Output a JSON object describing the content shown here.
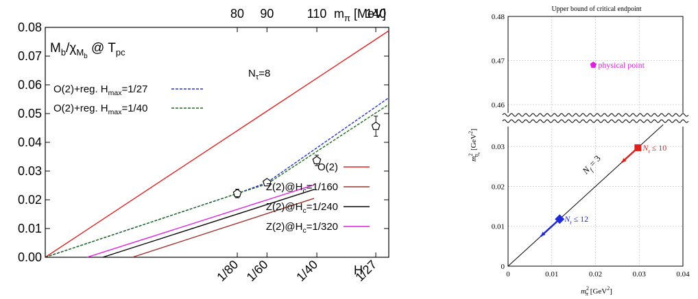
{
  "chart_data": [
    {
      "type": "line",
      "title": "",
      "panel_label": {
        "main": "M",
        "sub_b": "b",
        "slash": "/χ",
        "sub_m": "M",
        "sub_mb": "b",
        "at": " @ T",
        "sub_pc": "pc"
      },
      "annotation": {
        "main": "N",
        "sub": "τ",
        "rest": "=8"
      },
      "xlabel_bottom": "H",
      "xlabel_top": {
        "main": "m",
        "sub": "π",
        "rest": " [MeV]"
      },
      "x_scale": "sqrt(H)",
      "xlim": [
        0,
        0.2
      ],
      "ylim": [
        0,
        0.08
      ],
      "y_ticks": [
        "0.00",
        "0.01",
        "0.02",
        "0.03",
        "0.04",
        "0.05",
        "0.06",
        "0.07",
        "0.08"
      ],
      "x_ticks_bottom": [
        {
          "label": "1/80",
          "H": 0.0125
        },
        {
          "label": "1/60",
          "H": 0.016667
        },
        {
          "label": "1/40",
          "H": 0.025
        },
        {
          "label": "1/27",
          "H": 0.037037
        }
      ],
      "x_ticks_top": [
        {
          "label": "80",
          "H": 0.0125
        },
        {
          "label": "90",
          "H": 0.016667
        },
        {
          "label": "110",
          "H": 0.025
        },
        {
          "label": "140",
          "H": 0.037037
        }
      ],
      "legend_upper": [
        {
          "label": "O(2)+reg. H",
          "sub": "max",
          "rest": "=1/27",
          "color": "#2030d0",
          "dash": true
        },
        {
          "label": "O(2)+reg. H",
          "sub": "max",
          "rest": "=1/40",
          "color": "#1a6a1a",
          "dash": true
        }
      ],
      "legend_lower": [
        {
          "label": "O(2)",
          "sub": "",
          "rest": "",
          "color": "#e02020"
        },
        {
          "label": "Z(2)@H",
          "sub": "c",
          "rest": "=1/160",
          "color": "#a0302a"
        },
        {
          "label": "Z(2)@H",
          "sub": "c",
          "rest": "=1/240",
          "color": "#000000"
        },
        {
          "label": "Z(2)@H",
          "sub": "c",
          "rest": "=1/320",
          "color": "#e020e0"
        }
      ],
      "series": [
        {
          "name": "O(2)",
          "color": "#e02020",
          "dash": false,
          "x": [
            0,
            0.2
          ],
          "y": [
            0,
            0.0788
          ]
        },
        {
          "name": "O(2)+reg. Hmax=1/27",
          "color": "#2030d0",
          "dash": true,
          "x": [
            0,
            0.1118,
            0.1291,
            0.2
          ],
          "y": [
            0,
            0.0222,
            0.026,
            0.0555
          ]
        },
        {
          "name": "O(2)+reg. Hmax=1/40",
          "color": "#1a6a1a",
          "dash": true,
          "x": [
            0,
            0.1118,
            0.1291,
            0.2
          ],
          "y": [
            0,
            0.0222,
            0.0255,
            0.0532
          ]
        },
        {
          "name": "Z(2)@Hc=1/160",
          "color": "#a0302a",
          "dash": false,
          "x": [
            0.0507,
            0.1565
          ],
          "y": [
            0,
            0.0205
          ]
        },
        {
          "name": "Z(2)@Hc=1/240",
          "color": "#000000",
          "dash": false,
          "x": [
            0.0335,
            0.1565
          ],
          "y": [
            0,
            0.0236
          ]
        },
        {
          "name": "Z(2)@Hc=1/320",
          "color": "#e020e0",
          "dash": false,
          "x": [
            0.0244,
            0.1565
          ],
          "y": [
            0,
            0.0252
          ]
        }
      ],
      "points": [
        {
          "x": 0.1118,
          "y": 0.0222,
          "err": 0.0015
        },
        {
          "x": 0.1291,
          "y": 0.026,
          "err": 0.001
        },
        {
          "x": 0.1581,
          "y": 0.0337,
          "err": 0.0018
        },
        {
          "x": 0.1925,
          "y": 0.0456,
          "err": 0.0035
        }
      ]
    },
    {
      "type": "line",
      "title": "Upper bound of critical endpoint",
      "xlabel": {
        "main": "m",
        "sup": "2",
        "sub": "π",
        "rest": " [GeV",
        "unit_sup": "2",
        "end": "]"
      },
      "ylabel": {
        "main": "m",
        "sup": "2",
        "sub": "η",
        "subsub": "s",
        "rest": " [GeV",
        "unit_sup": "2",
        "end": "]"
      },
      "xlim": [
        0,
        0.04
      ],
      "ylim_lower": [
        0,
        0.035
      ],
      "ylim_upper": [
        0.45,
        0.48
      ],
      "x_ticks": [
        "0",
        "0.01",
        "0.02",
        "0.03",
        "0.04"
      ],
      "y_ticks_lower": [
        "0",
        "0.01",
        "0.02",
        "0.03"
      ],
      "y_ticks_upper": [
        "0.46",
        "0.47",
        "0.48"
      ],
      "grid": true,
      "line": {
        "name": "N_f = 3",
        "x": [
          0,
          0.0355
        ],
        "y": [
          0,
          0.0355
        ],
        "color": "#000000"
      },
      "line_label": {
        "main": "N",
        "sub": "f",
        "rest": " = 3"
      },
      "markers": [
        {
          "label": "N",
          "sub": "t",
          "rest": " ≤ 10",
          "x": 0.0297,
          "y": 0.0297,
          "color": "#e0201c",
          "shape": "square"
        },
        {
          "label": "N",
          "sub": "t",
          "rest": " ≤ 12",
          "x": 0.0118,
          "y": 0.0118,
          "color": "#1c2ad8",
          "shape": "diamond"
        },
        {
          "label": "physical point",
          "sub": "",
          "rest": "",
          "x": 0.0195,
          "y": 0.469,
          "color": "#e020e0",
          "shape": "pentagon"
        }
      ],
      "arrows": [
        {
          "from": [
            0.0297,
            0.0297
          ],
          "to": [
            0.026,
            0.026
          ],
          "color": "#e0201c"
        },
        {
          "from": [
            0.0118,
            0.0118
          ],
          "to": [
            0.0075,
            0.0075
          ],
          "color": "#1c2ad8"
        }
      ]
    }
  ]
}
